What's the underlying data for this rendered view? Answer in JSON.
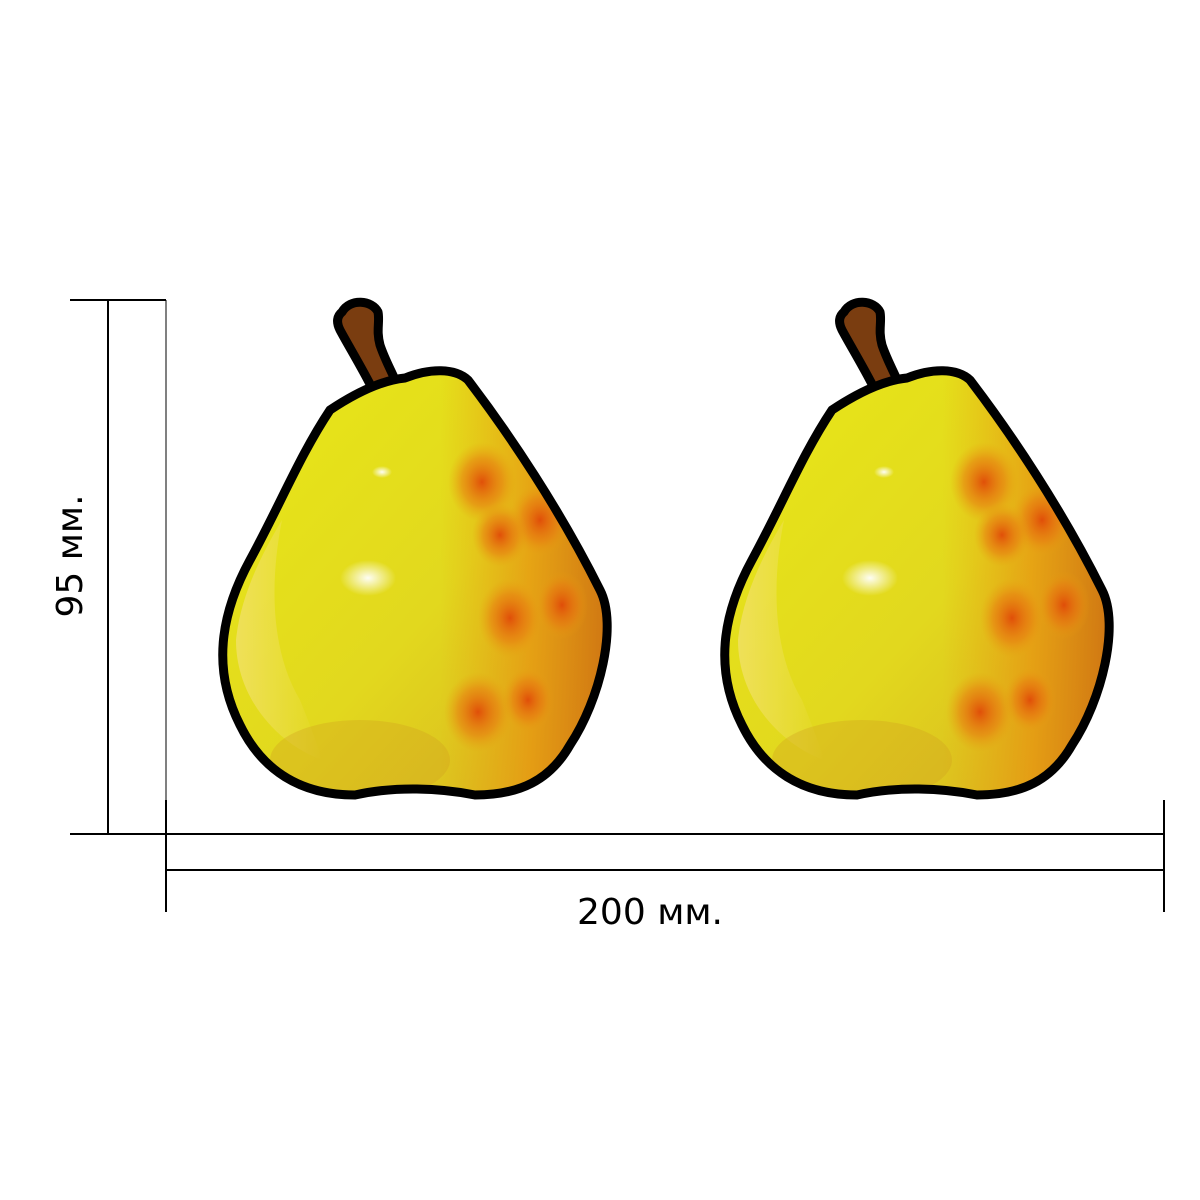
{
  "dimensions": {
    "height_label": "95 мм.",
    "width_label": "200 мм."
  },
  "pears": [
    {
      "name": "pear-left"
    },
    {
      "name": "pear-right"
    }
  ],
  "colors": {
    "outline": "#000000",
    "stem": "#7a3d10",
    "body_light": "#e8e817",
    "body_mid": "#e0c020",
    "blush": "#e06010",
    "dimension_line": "#000000"
  }
}
